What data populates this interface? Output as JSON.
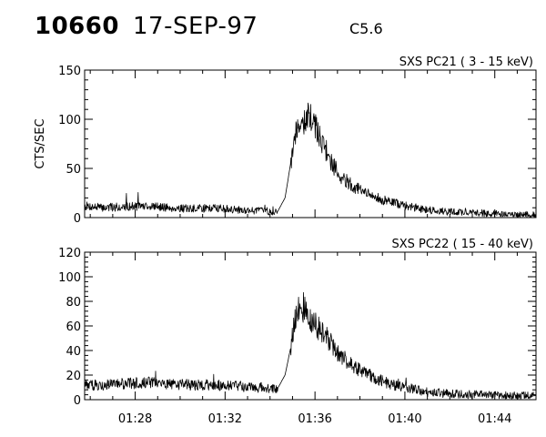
{
  "header": {
    "event_id": "10660",
    "date": "17-SEP-97",
    "flare_class": "C5.6"
  },
  "chart_data": [
    {
      "type": "line",
      "title": "SXS PC21  (  3 - 15 keV)",
      "ylabel": "CTS/SEC",
      "xlabel": "",
      "xlim": [
        "01:25:45",
        "01:45:50"
      ],
      "ylim": [
        0,
        150
      ],
      "yticks": [
        0,
        50,
        100,
        150
      ],
      "xticks": [
        "01:28",
        "01:32",
        "01:36",
        "01:40",
        "01:44"
      ],
      "grid": false,
      "series": [
        {
          "x": [
            "01:25:45",
            "01:26:30",
            "01:27:30",
            "01:28:30",
            "01:29:30",
            "01:30:30",
            "01:31:30",
            "01:32:30",
            "01:33:30",
            "01:34:20",
            "01:34:40",
            "01:34:55",
            "01:35:05",
            "01:35:15",
            "01:35:25",
            "01:35:35",
            "01:35:45",
            "01:35:55",
            "01:36:05",
            "01:36:15",
            "01:36:30",
            "01:36:45",
            "01:37:00",
            "01:37:15",
            "01:37:30",
            "01:38:00",
            "01:38:30",
            "01:39:00",
            "01:39:30",
            "01:40:00",
            "01:40:30",
            "01:41:00",
            "01:42:00",
            "01:43:00",
            "01:44:00",
            "01:45:00",
            "01:45:50"
          ],
          "values": [
            12,
            10,
            11,
            12,
            10,
            9,
            10,
            8,
            7,
            6,
            20,
            55,
            82,
            95,
            100,
            99,
            103,
            96,
            90,
            80,
            68,
            55,
            47,
            40,
            35,
            28,
            22,
            18,
            15,
            12,
            10,
            8,
            6,
            5,
            4,
            3,
            3
          ]
        }
      ]
    },
    {
      "type": "line",
      "title": "SXS PC22  ( 15 - 40 keV)",
      "ylabel": "",
      "xlabel": "",
      "xlim": [
        "01:25:45",
        "01:45:50"
      ],
      "ylim": [
        0,
        120
      ],
      "yticks": [
        0,
        20,
        40,
        60,
        80,
        100,
        120
      ],
      "xticks": [
        "01:28",
        "01:32",
        "01:36",
        "01:40",
        "01:44"
      ],
      "grid": false,
      "series": [
        {
          "x": [
            "01:25:45",
            "01:26:30",
            "01:27:30",
            "01:28:30",
            "01:29:30",
            "01:30:30",
            "01:31:30",
            "01:32:30",
            "01:33:30",
            "01:34:20",
            "01:34:40",
            "01:34:55",
            "01:35:05",
            "01:35:15",
            "01:35:25",
            "01:35:35",
            "01:35:45",
            "01:35:55",
            "01:36:05",
            "01:36:15",
            "01:36:30",
            "01:36:45",
            "01:37:00",
            "01:37:15",
            "01:37:30",
            "01:38:00",
            "01:38:30",
            "01:39:00",
            "01:39:30",
            "01:40:00",
            "01:40:30",
            "01:41:00",
            "01:42:00",
            "01:43:00",
            "01:44:00",
            "01:45:00",
            "01:45:50"
          ],
          "values": [
            12,
            12,
            13,
            14,
            13,
            12,
            12,
            11,
            10,
            9,
            20,
            42,
            62,
            72,
            76,
            72,
            68,
            64,
            60,
            56,
            52,
            45,
            39,
            34,
            30,
            24,
            19,
            15,
            12,
            10,
            8,
            6,
            5,
            4,
            4,
            3,
            3
          ]
        }
      ]
    }
  ]
}
